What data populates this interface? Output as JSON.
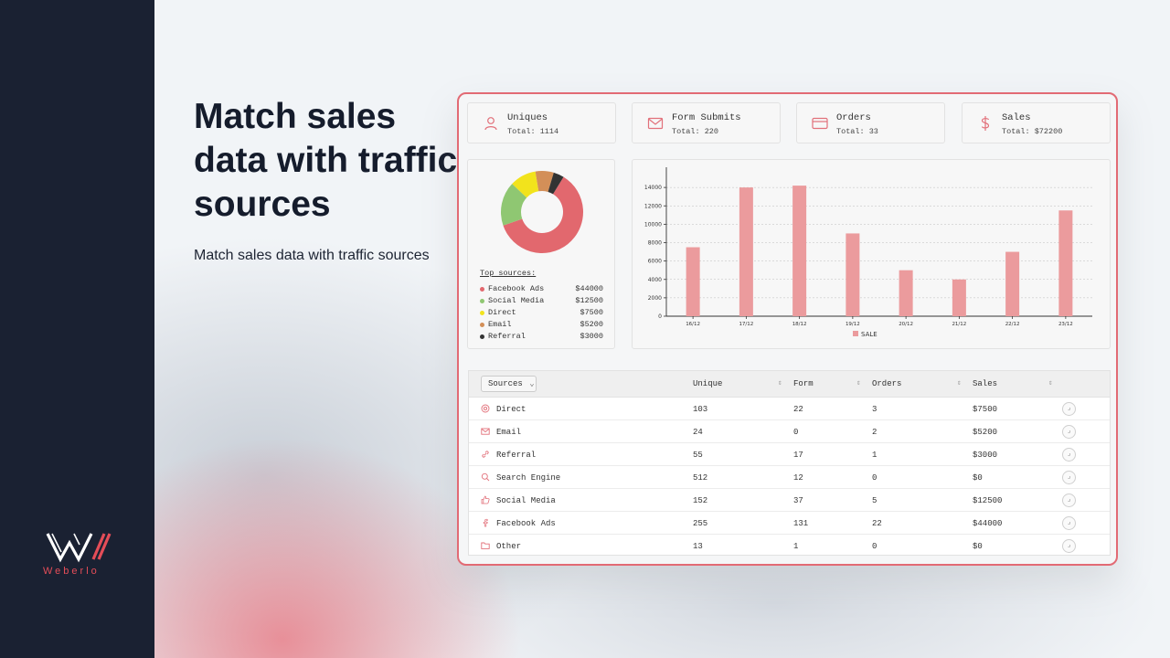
{
  "brand": {
    "name": "Weberlo",
    "accent": "#e44d58",
    "sidebar_bg": "#1a2132"
  },
  "hero": {
    "headline": "Match sales data with traffic sources",
    "subline": "Match sales data with traffic sources"
  },
  "stats": [
    {
      "icon": "user-icon",
      "label": "Uniques",
      "value": "Total: 1114"
    },
    {
      "icon": "mail-icon",
      "label": "Form Submits",
      "value": "Total: 220"
    },
    {
      "icon": "card-icon",
      "label": "Orders",
      "value": "Total: 33"
    },
    {
      "icon": "dollar-icon",
      "label": "Sales",
      "value": "Total: $72200"
    }
  ],
  "top_sources": {
    "title": "Top sources:",
    "items": [
      {
        "name": "Facebook Ads",
        "amount": "$44000",
        "value": 44000,
        "color": "#e2686e"
      },
      {
        "name": "Social Media",
        "amount": "$12500",
        "value": 12500,
        "color": "#8fc772"
      },
      {
        "name": "Direct",
        "amount": "$7500",
        "value": 7500,
        "color": "#f2e31c"
      },
      {
        "name": "Email",
        "amount": "$5200",
        "value": 5200,
        "color": "#d38f58"
      },
      {
        "name": "Referral",
        "amount": "$3000",
        "value": 3000,
        "color": "#333333"
      }
    ]
  },
  "chart_data": {
    "type": "bar",
    "categories": [
      "16/12",
      "17/12",
      "18/12",
      "19/12",
      "20/12",
      "21/12",
      "22/12",
      "23/12"
    ],
    "series": [
      {
        "name": "SALE",
        "values": [
          7500,
          14000,
          14200,
          9000,
          5000,
          4000,
          7000,
          11500
        ],
        "color": "#eb9b9d"
      }
    ],
    "y_ticks": [
      "0",
      "2000",
      "4000",
      "6000",
      "8000",
      "10000",
      "12000",
      "14000"
    ],
    "ylim": [
      0,
      16000
    ],
    "grid": true,
    "legend": "bottom"
  },
  "table": {
    "sources_button": "Sources",
    "headers": [
      "Unique",
      "Form",
      "Orders",
      "Sales"
    ],
    "rows": [
      {
        "icon": "target-icon",
        "source": "Direct",
        "unique": "103",
        "form": "22",
        "orders": "3",
        "sales": "$7500"
      },
      {
        "icon": "mail-icon",
        "source": "Email",
        "unique": "24",
        "form": "0",
        "orders": "2",
        "sales": "$5200"
      },
      {
        "icon": "link-icon",
        "source": "Referral",
        "unique": "55",
        "form": "17",
        "orders": "1",
        "sales": "$3000"
      },
      {
        "icon": "search-icon",
        "source": "Search Engine",
        "unique": "512",
        "form": "12",
        "orders": "0",
        "sales": "$0"
      },
      {
        "icon": "thumbs-up-icon",
        "source": "Social Media",
        "unique": "152",
        "form": "37",
        "orders": "5",
        "sales": "$12500"
      },
      {
        "icon": "facebook-icon",
        "source": "Facebook Ads",
        "unique": "255",
        "form": "131",
        "orders": "22",
        "sales": "$44000"
      },
      {
        "icon": "folder-icon",
        "source": "Other",
        "unique": "13",
        "form": "1",
        "orders": "0",
        "sales": "$0"
      }
    ]
  }
}
